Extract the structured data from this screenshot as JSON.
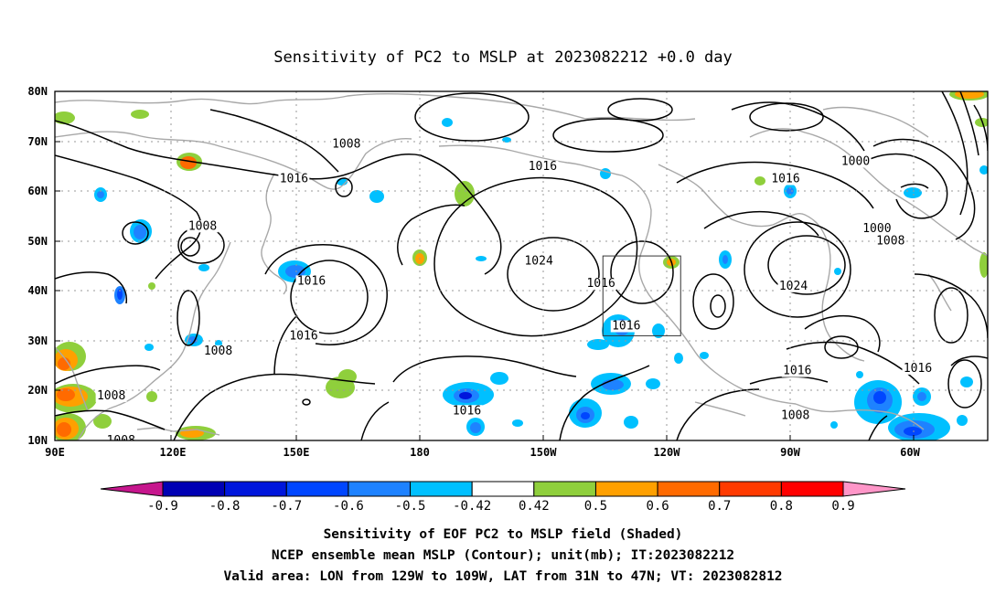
{
  "title": "Sensitivity of PC2 to MSLP at 2023082212 +0.0 day",
  "lat_labels": [
    "80N",
    "70N",
    "60N",
    "50N",
    "40N",
    "30N",
    "20N",
    "10N"
  ],
  "lon_labels": [
    "90E",
    "120E",
    "150E",
    "180",
    "150W",
    "120W",
    "90W",
    "60W"
  ],
  "contour_labels": [
    {
      "text": "1008",
      "lon": 165.0,
      "lat": 69.5
    },
    {
      "text": "1016",
      "lon": 215.5,
      "lat": 65.0
    },
    {
      "text": "1016",
      "lon": 278.0,
      "lat": 62.5
    },
    {
      "text": "1000",
      "lon": 296.0,
      "lat": 66.0
    },
    {
      "text": "1000",
      "lon": 301.5,
      "lat": 52.5
    },
    {
      "text": "1008",
      "lon": 305.0,
      "lat": 50.0
    },
    {
      "text": "1016",
      "lon": 151.5,
      "lat": 62.5
    },
    {
      "text": "1008",
      "lon": 128.0,
      "lat": 53.0
    },
    {
      "text": "1024",
      "lon": 214.5,
      "lat": 46.0
    },
    {
      "text": "1016",
      "lon": 230.5,
      "lat": 41.5
    },
    {
      "text": "1016",
      "lon": 156.0,
      "lat": 42.0
    },
    {
      "text": "1016",
      "lon": 154.0,
      "lat": 31.0
    },
    {
      "text": "1016",
      "lon": 237.0,
      "lat": 33.0
    },
    {
      "text": "1024",
      "lon": 280.0,
      "lat": 41.0
    },
    {
      "text": "1008",
      "lon": 132.0,
      "lat": 28.0
    },
    {
      "text": "1008",
      "lon": 104.5,
      "lat": 19.0
    },
    {
      "text": "1008",
      "lon": 107.0,
      "lat": 10.0
    },
    {
      "text": "1016",
      "lon": 196.0,
      "lat": 16.0
    },
    {
      "text": "1016",
      "lon": 281.0,
      "lat": 24.0
    },
    {
      "text": "1016",
      "lon": 312.0,
      "lat": 24.5
    },
    {
      "text": "1008",
      "lon": 280.5,
      "lat": 15.0
    }
  ],
  "valid_box": {
    "lon_min": 231,
    "lon_max": 251,
    "lat_min": 31,
    "lat_max": 47
  },
  "colorbar": {
    "colors": [
      "#c6168d",
      "#0000b4",
      "#0016dc",
      "#0046ff",
      "#1e82ff",
      "#00c0ff",
      "#ffffff",
      "#8fcf3c",
      "#ffa000",
      "#ff6a00",
      "#ff3a00",
      "#ff0000",
      "#ff96c8"
    ],
    "labels": [
      "-0.9",
      "-0.8",
      "-0.7",
      "-0.6",
      "-0.5",
      "-0.42",
      "0.42",
      "0.5",
      "0.6",
      "0.7",
      "0.8",
      "0.9"
    ]
  },
  "captions": [
    "Sensitivity of EOF PC2 to MSLP field (Shaded)",
    "NCEP ensemble mean MSLP (Contour); unit(mb); IT:2023082212",
    "Valid area: LON from 129W to 109W, LAT from 31N to 47N; VT: 2023082812"
  ],
  "legend_colors": {
    "grid": "#999999",
    "coast": "#a8a8a8",
    "contour": "#000000"
  }
}
